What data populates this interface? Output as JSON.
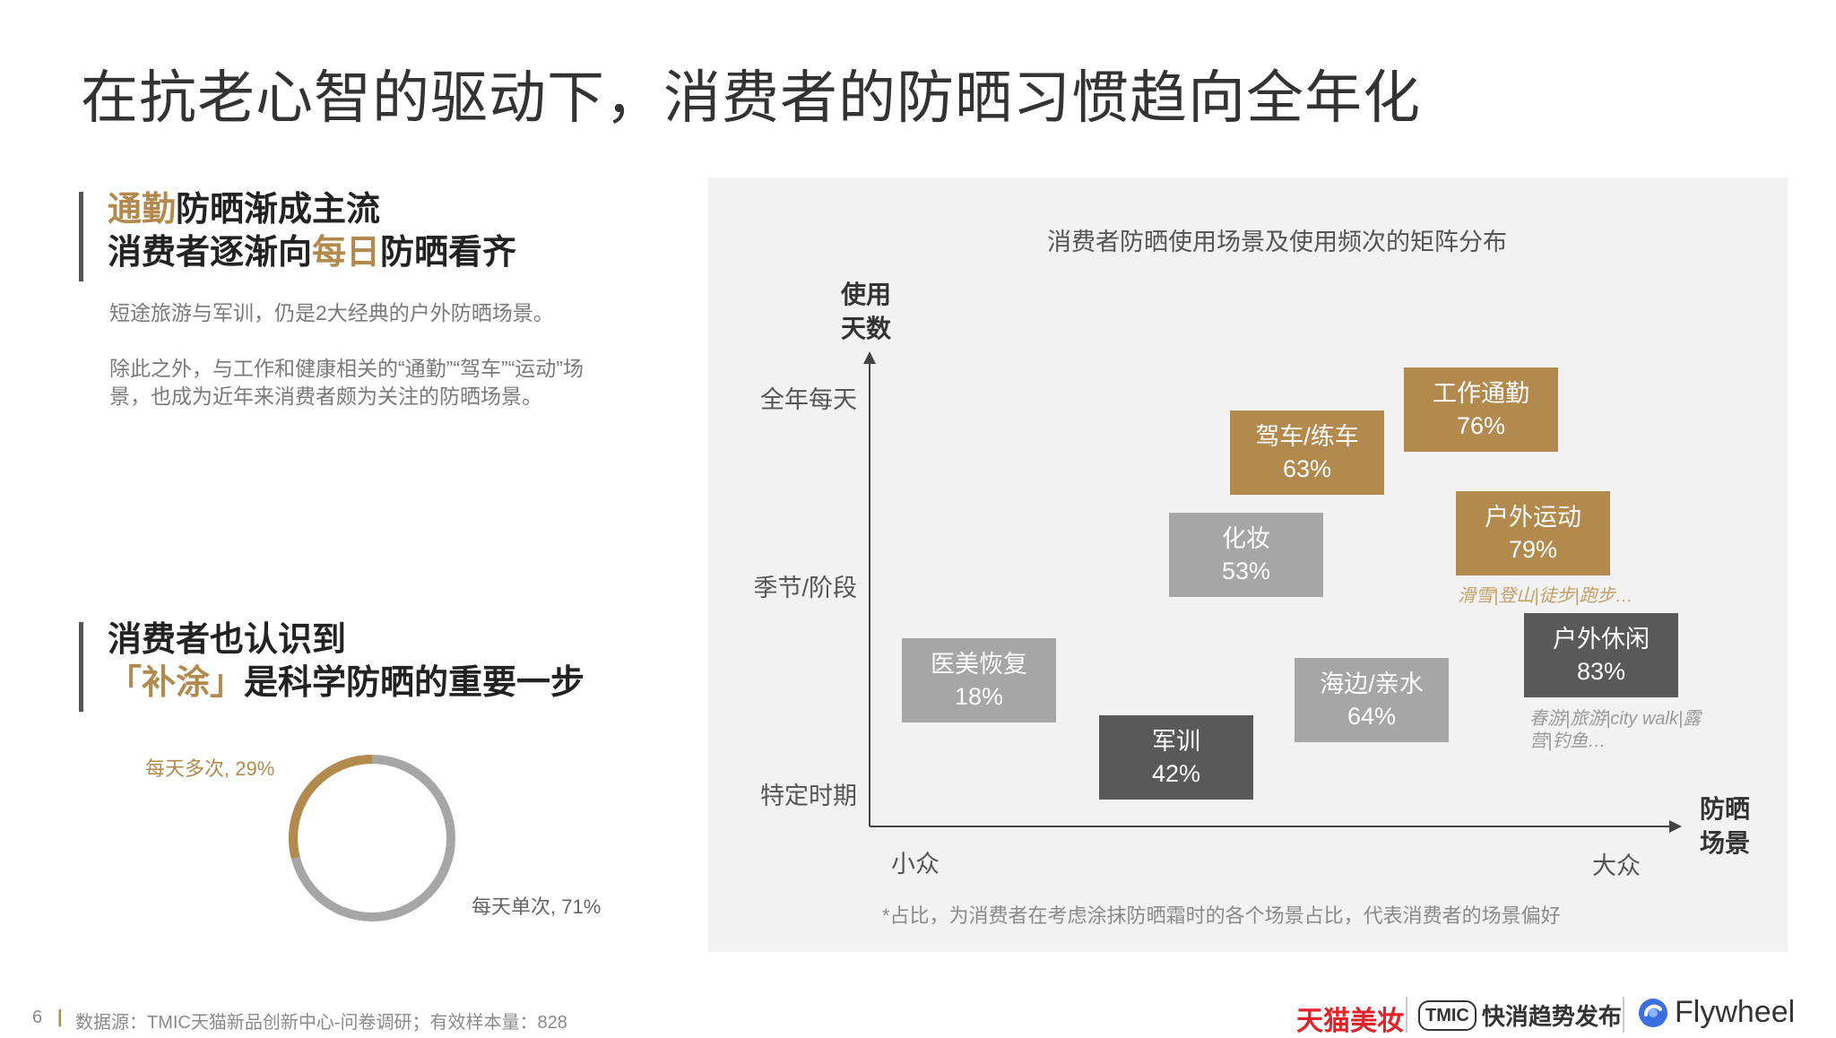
{
  "page": {
    "title": "在抗老心智的驱动下，消费者的防晒习惯趋向全年化"
  },
  "section1": {
    "headline_line1_highlight": "通勤",
    "headline_line1_rest": "防晒渐成主流",
    "headline_line2_pre": "消费者逐渐向",
    "headline_line2_highlight": "每日",
    "headline_line2_post": "防晒看齐",
    "paragraph1": "短途旅游与军训，仍是2大经典的户外防晒场景。",
    "paragraph2": "除此之外，与工作和健康相关的“通勤”“驾车”“运动”场景，也成为近年来消费者颇为关注的防晒场景。"
  },
  "section2": {
    "headline_line1": "消费者也认识到",
    "headline_line2_highlight": "「补涂」",
    "headline_line2_rest": "是科学防晒的重要一步"
  },
  "donut": {
    "colors": {
      "multi": "#b38a4e",
      "single": "#a6a6a6"
    },
    "segments": [
      {
        "label": "每天多次, 29%",
        "value": 29
      },
      {
        "label": "每天单次, 71%",
        "value": 71
      }
    ]
  },
  "matrix": {
    "title": "消费者防晒使用场景及使用频次的矩阵分布",
    "y_axis_label_line1": "使用",
    "y_axis_label_line2": "天数",
    "x_axis_label_line1": "防晒",
    "x_axis_label_line2": "场景",
    "y_ticks": [
      "全年每天",
      "季节/阶段",
      "特定时期"
    ],
    "x_ticks": [
      "小众",
      "大众"
    ],
    "items": [
      {
        "name": "工作通勤",
        "pct": "76%",
        "tone": "gold"
      },
      {
        "name": "驾车/练车",
        "pct": "63%",
        "tone": "gold"
      },
      {
        "name": "户外运动",
        "pct": "79%",
        "tone": "gold"
      },
      {
        "name": "化妆",
        "pct": "53%",
        "tone": "light"
      },
      {
        "name": "医美恢复",
        "pct": "18%",
        "tone": "light"
      },
      {
        "name": "海边/亲水",
        "pct": "64%",
        "tone": "light"
      },
      {
        "name": "军训",
        "pct": "42%",
        "tone": "dark"
      },
      {
        "name": "户外休闲",
        "pct": "83%",
        "tone": "dark"
      }
    ],
    "note_sport": "滑雪|登山|徒步|跑步…",
    "note_leisure": "春游|旅游|city walk|露营|钓鱼…",
    "footnote": "*占比，为消费者在考虑涂抹防晒霜时的各个场景占比，代表消费者的场景偏好"
  },
  "footer": {
    "page_number": "6",
    "separator": "|",
    "source": "数据源：TMIC天猫新品创新中心-问卷调研；有效样本量：828"
  },
  "logos": {
    "tmall": "天猫美妆",
    "tmic_box": "TMIC",
    "tmic_text": "快消趋势发布",
    "flywheel": "Flywheel"
  }
}
